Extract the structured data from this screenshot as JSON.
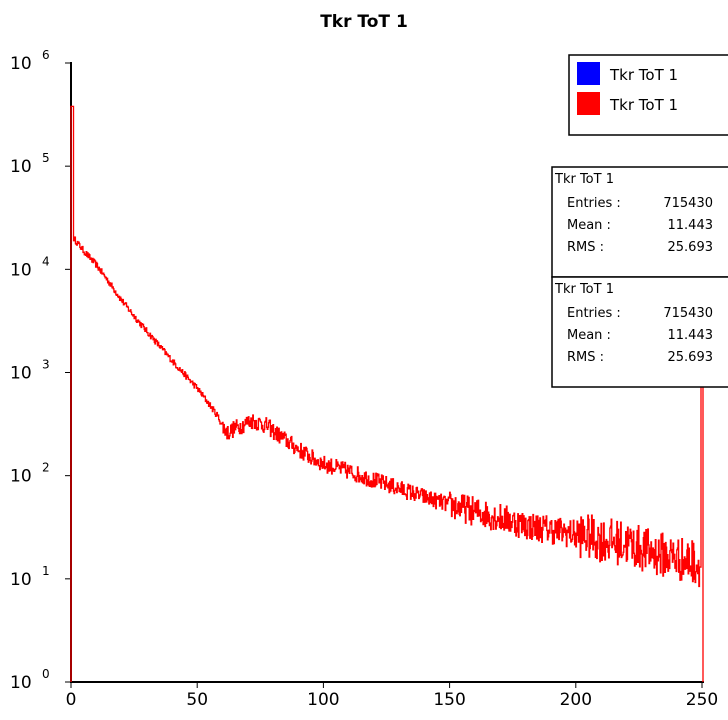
{
  "chart_data": {
    "type": "line",
    "title": "Tkr ToT 1",
    "xlabel": "",
    "ylabel": "",
    "x_ticks": [
      "0",
      "50",
      "100",
      "150",
      "200",
      "250"
    ],
    "y_ticks": [
      {
        "base": "10",
        "exp": "0"
      },
      {
        "base": "10",
        "exp": "1"
      },
      {
        "base": "10",
        "exp": "2"
      },
      {
        "base": "10",
        "exp": "3"
      },
      {
        "base": "10",
        "exp": "4"
      },
      {
        "base": "10",
        "exp": "5"
      },
      {
        "base": "10",
        "exp": "6"
      }
    ],
    "xlim": [
      0,
      250
    ],
    "ylim": [
      1,
      1000000
    ],
    "y_scale": "log",
    "grid": false,
    "legend_position": "top-right",
    "legend": [
      {
        "label": "Tkr ToT 1",
        "color": "#0000ff"
      },
      {
        "label": "Tkr ToT 1",
        "color": "#ff0000"
      }
    ],
    "stats_boxes": [
      {
        "title": "Tkr ToT 1",
        "rows": [
          {
            "label": "Entries :",
            "value": "715430"
          },
          {
            "label": "Mean :",
            "value": "11.443"
          },
          {
            "label": "RMS :",
            "value": "25.693"
          }
        ]
      },
      {
        "title": "Tkr ToT 1",
        "rows": [
          {
            "label": "Entries :",
            "value": "715430"
          },
          {
            "label": "Mean :",
            "value": "11.443"
          },
          {
            "label": "RMS :",
            "value": "25.693"
          }
        ]
      }
    ],
    "series": [
      {
        "color": "#ff0000",
        "x": [
          0,
          1,
          5,
          10,
          15,
          20,
          25,
          30,
          35,
          40,
          45,
          50,
          55,
          58,
          60,
          62,
          65,
          68,
          70,
          72,
          75,
          78,
          80,
          85,
          90,
          95,
          100,
          110,
          120,
          130,
          140,
          150,
          160,
          170,
          180,
          190,
          200,
          210,
          220,
          225,
          230,
          235,
          240,
          243,
          246,
          248,
          249,
          250
        ],
        "y": [
          380000,
          20000,
          15000,
          11000,
          7500,
          5000,
          3500,
          2500,
          1800,
          1300,
          950,
          700,
          480,
          380,
          300,
          260,
          290,
          310,
          330,
          340,
          320,
          300,
          270,
          220,
          180,
          150,
          130,
          110,
          90,
          75,
          62,
          52,
          45,
          39,
          33,
          30,
          27,
          24,
          22,
          20,
          18,
          17,
          16,
          15,
          15,
          14,
          13,
          1000
        ]
      }
    ]
  }
}
